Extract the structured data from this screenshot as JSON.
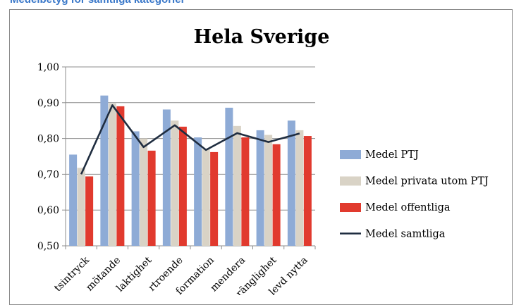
{
  "header": {
    "text": "Medelbetyg för samtliga kategorier"
  },
  "chart_data": {
    "type": "bar",
    "title": "Hela Sverige",
    "categories": [
      "Helhetsintryck",
      "Bemötande",
      "Opartiskhet",
      "Förtroende",
      "Information",
      "Rekommendera",
      "Tillgänglighet",
      "Upplevd nytta"
    ],
    "category_labels_visible": [
      "tsintryck",
      "mötande",
      "laktighet",
      "rtroende",
      "formation",
      "mendera",
      "ränglighet",
      "levd nytta"
    ],
    "ylim": [
      0.5,
      1.0
    ],
    "yticks": [
      "0,50",
      "0,60",
      "0,70",
      "0,80",
      "0,90",
      "1,00"
    ],
    "grid": true,
    "legend_position": "right",
    "series": [
      {
        "name": "Medel PTJ",
        "kind": "bar",
        "color": "#8eabd6",
        "values": [
          0.755,
          0.92,
          0.82,
          0.881,
          0.803,
          0.886,
          0.823,
          0.85
        ]
      },
      {
        "name": "Medel privata utom PTJ",
        "kind": "bar",
        "color": "#d9d3c6",
        "values": [
          0.718,
          0.898,
          0.8,
          0.85,
          0.77,
          0.835,
          0.81,
          0.823
        ]
      },
      {
        "name": "Medel offentliga",
        "kind": "bar",
        "color": "#e13a2e",
        "values": [
          0.694,
          0.89,
          0.766,
          0.833,
          0.762,
          0.803,
          0.784,
          0.807
        ]
      },
      {
        "name": "Medel samtliga",
        "kind": "line",
        "color": "#1f2d40",
        "values": [
          0.7,
          0.893,
          0.776,
          0.837,
          0.768,
          0.815,
          0.79,
          0.814
        ]
      }
    ]
  }
}
